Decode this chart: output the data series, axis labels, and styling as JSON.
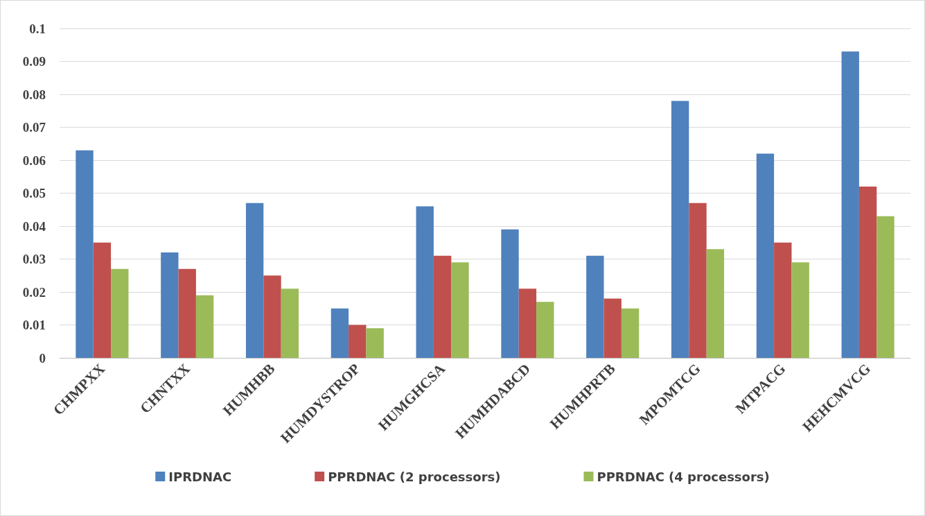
{
  "chart_data": {
    "type": "bar",
    "categories": [
      "CHMPXX",
      "CHNTXX",
      "HUMHBB",
      "HUMDYSTROP",
      "HUMGHCSA",
      "HUMHDABCD",
      "HUMHPRTB",
      "MPOMTCG",
      "MTPACG",
      "HEHCMVCG"
    ],
    "series": [
      {
        "name": "IPRDNAC",
        "color": "#4f81bd",
        "values": [
          0.063,
          0.032,
          0.047,
          0.015,
          0.046,
          0.039,
          0.031,
          0.078,
          0.062,
          0.093
        ]
      },
      {
        "name": "PPRDNAC (2 processors)",
        "color": "#c0504d",
        "values": [
          0.035,
          0.027,
          0.025,
          0.01,
          0.031,
          0.021,
          0.018,
          0.047,
          0.035,
          0.052
        ]
      },
      {
        "name": "PPRDNAC (4 processors)",
        "color": "#9bbb59",
        "values": [
          0.027,
          0.019,
          0.021,
          0.009,
          0.029,
          0.017,
          0.015,
          0.033,
          0.029,
          0.043
        ]
      }
    ],
    "ylim": [
      0,
      0.1
    ],
    "yticks": [
      0,
      0.01,
      0.02,
      0.03,
      0.04,
      0.05,
      0.06,
      0.07,
      0.08,
      0.09,
      0.1
    ],
    "grid": "y",
    "legend": "bottom"
  }
}
